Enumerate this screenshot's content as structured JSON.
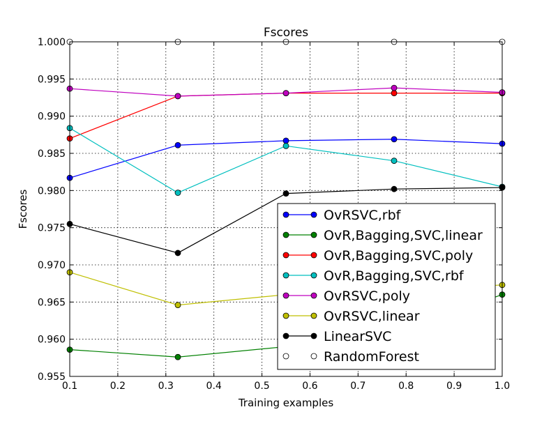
{
  "chart_data": {
    "type": "line",
    "title": "Fscores",
    "xlabel": "Training examples",
    "ylabel": "Fscores",
    "xlim": [
      0.1,
      1.0
    ],
    "ylim": [
      0.955,
      1.0
    ],
    "grid": true,
    "legend_position": "lower-right",
    "x_ticks": [
      "0.1",
      "0.2",
      "0.3",
      "0.4",
      "0.5",
      "0.6",
      "0.7",
      "0.8",
      "0.9",
      "1.0"
    ],
    "y_ticks": [
      "0.955",
      "0.960",
      "0.965",
      "0.970",
      "0.975",
      "0.980",
      "0.985",
      "0.990",
      "0.995",
      "1.000"
    ],
    "x": [
      0.1,
      0.325,
      0.55,
      0.775,
      1.0
    ],
    "series": [
      {
        "name": "OvRSVC,rbf",
        "color": "#0000ff",
        "marker_fill": "#0000ff",
        "values": [
          0.9817,
          0.9861,
          0.9867,
          0.9869,
          0.9863
        ]
      },
      {
        "name": "OvR,Bagging,SVC,linear",
        "color": "#008000",
        "marker_fill": "#008000",
        "values": [
          0.9586,
          0.9576,
          0.959,
          0.961,
          0.966
        ]
      },
      {
        "name": "OvR,Bagging,SVC,poly",
        "color": "#ff0000",
        "marker_fill": "#ff0000",
        "values": [
          0.987,
          0.9927,
          0.9931,
          0.9931,
          0.9931
        ]
      },
      {
        "name": "OvR,Bagging,SVC,rbf",
        "color": "#00bfbf",
        "marker_fill": "#00bfbf",
        "values": [
          0.9884,
          0.9797,
          0.986,
          0.984,
          0.9805
        ]
      },
      {
        "name": "OvRSVC,poly",
        "color": "#bf00bf",
        "marker_fill": "#bf00bf",
        "values": [
          0.9937,
          0.9927,
          0.9931,
          0.9938,
          0.9932
        ]
      },
      {
        "name": "OvRSVC,linear",
        "color": "#bfbf00",
        "marker_fill": "#bfbf00",
        "values": [
          0.969,
          0.9646,
          0.966,
          0.9665,
          0.9673
        ]
      },
      {
        "name": "LinearSVC",
        "color": "#000000",
        "marker_fill": "#000000",
        "values": [
          0.9755,
          0.9716,
          0.9796,
          0.9802,
          0.9804
        ]
      },
      {
        "name": "RandomForest",
        "color": "#ffffff",
        "marker_fill": "#ffffff",
        "values": [
          1.0,
          1.0,
          1.0,
          1.0,
          1.0
        ]
      }
    ]
  }
}
